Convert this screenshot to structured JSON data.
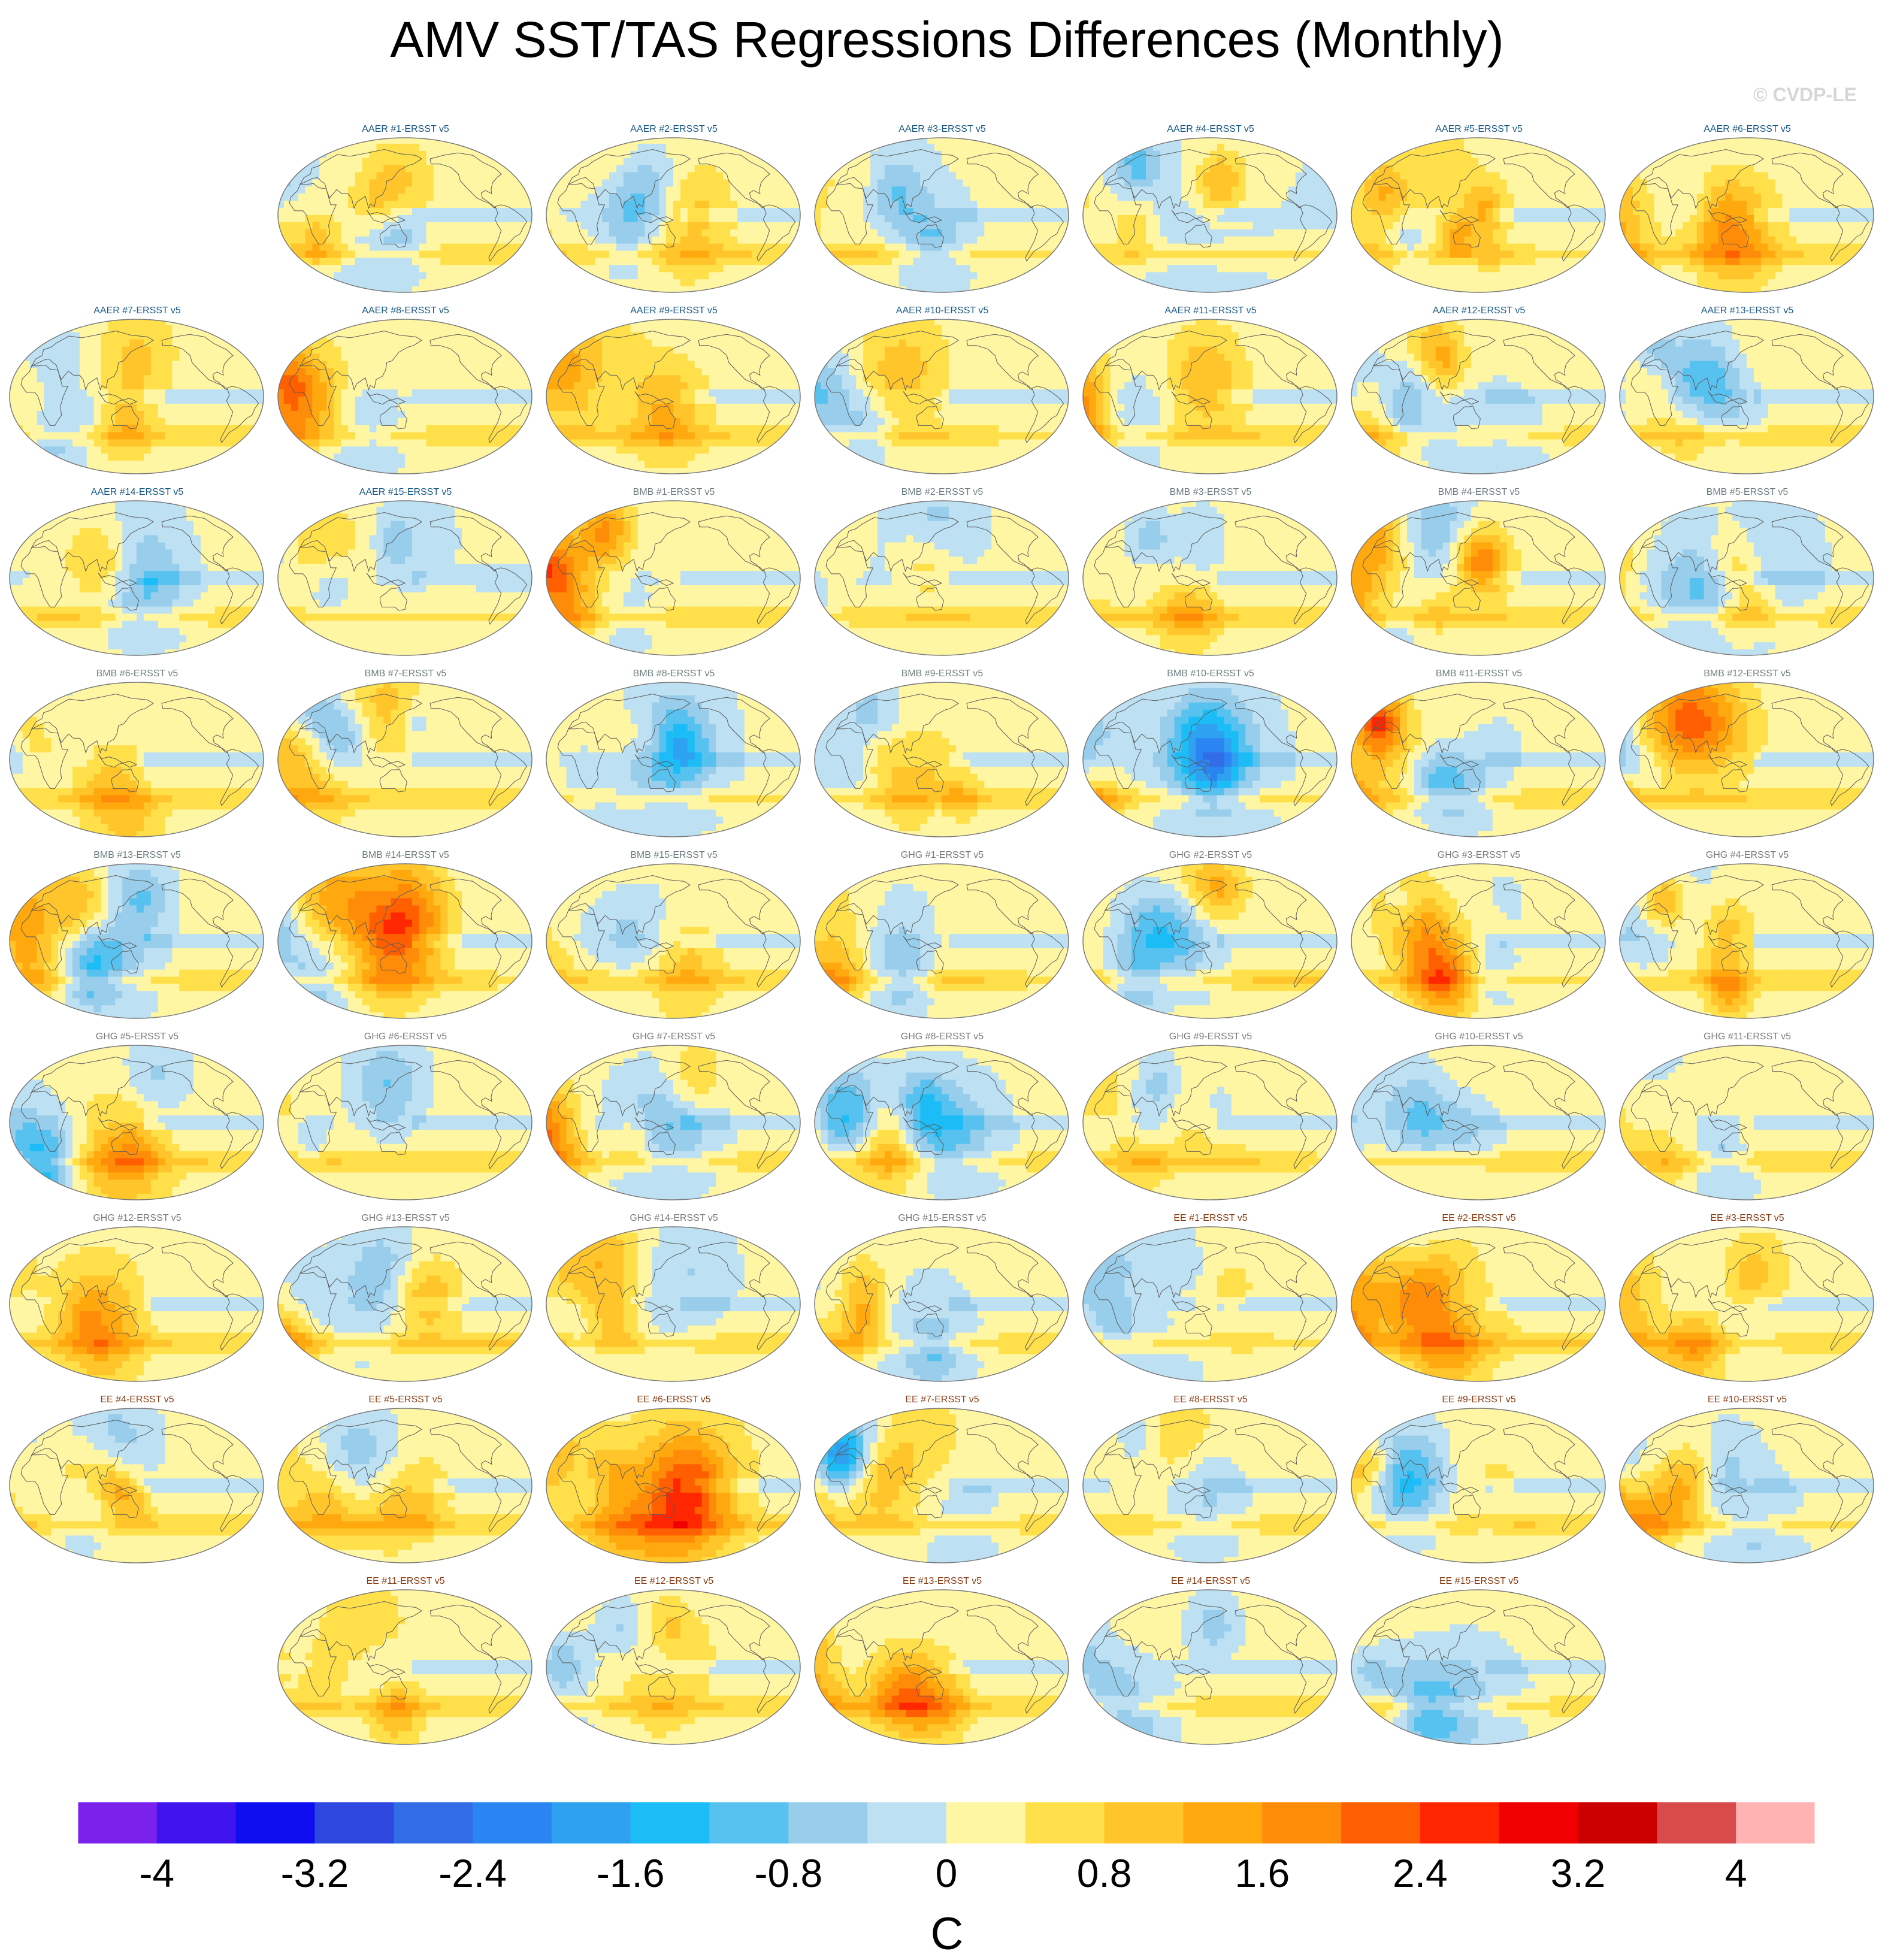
{
  "title": "AMV SST/TAS Regressions Differences (Monthly)",
  "copyright": "© CVDP-LE",
  "chart_data": {
    "type": "heatmap",
    "projection": "robinson",
    "panel_groups": [
      {
        "prefix": "AAER",
        "title_color": "#1a5a86"
      },
      {
        "prefix": "BMB",
        "title_color": "#6f7f80"
      },
      {
        "prefix": "GHG",
        "title_color": "#7d7d7d"
      },
      {
        "prefix": "EE",
        "title_color": "#8a3e14"
      }
    ],
    "panels": [
      {
        "title": "AAER #1-ERSST v5",
        "group": 0,
        "row": 0,
        "col": 1,
        "bias": 0.1,
        "na": -1.6,
        "seed": 11
      },
      {
        "title": "AAER #2-ERSST v5",
        "group": 0,
        "row": 0,
        "col": 2,
        "bias": 0.15,
        "na": -0.6,
        "seed": 12
      },
      {
        "title": "AAER #3-ERSST v5",
        "group": 0,
        "row": 0,
        "col": 3,
        "bias": 0.05,
        "na": -3.6,
        "seed": 13
      },
      {
        "title": "AAER #4-ERSST v5",
        "group": 0,
        "row": 0,
        "col": 4,
        "bias": 0.0,
        "na": -3.8,
        "seed": 14
      },
      {
        "title": "AAER #5-ERSST v5",
        "group": 0,
        "row": 0,
        "col": 5,
        "bias": 0.05,
        "na": -3.8,
        "seed": 15
      },
      {
        "title": "AAER #6-ERSST v5",
        "group": 0,
        "row": 0,
        "col": 6,
        "bias": 0.1,
        "na": -2.6,
        "seed": 16
      },
      {
        "title": "AAER #7-ERSST v5",
        "group": 0,
        "row": 1,
        "col": 0,
        "bias": 0.1,
        "na": -4.0,
        "seed": 17
      },
      {
        "title": "AAER #8-ERSST v5",
        "group": 0,
        "row": 1,
        "col": 1,
        "bias": 0.1,
        "na": -0.8,
        "seed": 18
      },
      {
        "title": "AAER #9-ERSST v5",
        "group": 0,
        "row": 1,
        "col": 2,
        "bias": 0.1,
        "na": -1.4,
        "seed": 19
      },
      {
        "title": "AAER #10-ERSST v5",
        "group": 0,
        "row": 1,
        "col": 3,
        "bias": 0.05,
        "na": -2.0,
        "seed": 20
      },
      {
        "title": "AAER #11-ERSST v5",
        "group": 0,
        "row": 1,
        "col": 4,
        "bias": 0.1,
        "na": -1.2,
        "seed": 21
      },
      {
        "title": "AAER #12-ERSST v5",
        "group": 0,
        "row": 1,
        "col": 5,
        "bias": 0.15,
        "na": -2.6,
        "seed": 22
      },
      {
        "title": "AAER #13-ERSST v5",
        "group": 0,
        "row": 1,
        "col": 6,
        "bias": 0.1,
        "na": -3.8,
        "seed": 23
      },
      {
        "title": "AAER #14-ERSST v5",
        "group": 0,
        "row": 2,
        "col": 0,
        "bias": 0.1,
        "na": -3.8,
        "seed": 24
      },
      {
        "title": "AAER #15-ERSST v5",
        "group": 0,
        "row": 2,
        "col": 1,
        "bias": 0.0,
        "na": -3.4,
        "seed": 25
      },
      {
        "title": "BMB #1-ERSST v5",
        "group": 1,
        "row": 2,
        "col": 2,
        "bias": 0.2,
        "na": -0.6,
        "seed": 26
      },
      {
        "title": "BMB #2-ERSST v5",
        "group": 1,
        "row": 2,
        "col": 3,
        "bias": 0.1,
        "na": -2.6,
        "seed": 27
      },
      {
        "title": "BMB #3-ERSST v5",
        "group": 1,
        "row": 2,
        "col": 4,
        "bias": 0.1,
        "na": -0.8,
        "seed": 28
      },
      {
        "title": "BMB #4-ERSST v5",
        "group": 1,
        "row": 2,
        "col": 5,
        "bias": 0.15,
        "na": -0.8,
        "seed": 29
      },
      {
        "title": "BMB #5-ERSST v5",
        "group": 1,
        "row": 2,
        "col": 6,
        "bias": 0.1,
        "na": -3.6,
        "seed": 30
      },
      {
        "title": "BMB #6-ERSST v5",
        "group": 1,
        "row": 3,
        "col": 0,
        "bias": 0.1,
        "na": -0.8,
        "seed": 31
      },
      {
        "title": "BMB #7-ERSST v5",
        "group": 1,
        "row": 3,
        "col": 1,
        "bias": 0.1,
        "na": -1.0,
        "seed": 32
      },
      {
        "title": "BMB #8-ERSST v5",
        "group": 1,
        "row": 3,
        "col": 2,
        "bias": 0.05,
        "na": -3.8,
        "seed": 33
      },
      {
        "title": "BMB #9-ERSST v5",
        "group": 1,
        "row": 3,
        "col": 3,
        "bias": 0.1,
        "na": -0.8,
        "seed": 34
      },
      {
        "title": "BMB #10-ERSST v5",
        "group": 1,
        "row": 3,
        "col": 4,
        "bias": 0.05,
        "na": -3.4,
        "seed": 35
      },
      {
        "title": "BMB #11-ERSST v5",
        "group": 1,
        "row": 3,
        "col": 5,
        "bias": 0.1,
        "na": -3.8,
        "seed": 36
      },
      {
        "title": "BMB #12-ERSST v5",
        "group": 1,
        "row": 3,
        "col": 6,
        "bias": 0.1,
        "na": -3.8,
        "seed": 37
      },
      {
        "title": "BMB #13-ERSST v5",
        "group": 1,
        "row": 4,
        "col": 0,
        "bias": 0.15,
        "na": -0.8,
        "seed": 38
      },
      {
        "title": "BMB #14-ERSST v5",
        "group": 1,
        "row": 4,
        "col": 1,
        "bias": 0.05,
        "na": -3.4,
        "seed": 39
      },
      {
        "title": "BMB #15-ERSST v5",
        "group": 1,
        "row": 4,
        "col": 2,
        "bias": 0.1,
        "na": -0.8,
        "seed": 40
      },
      {
        "title": "GHG #1-ERSST v5",
        "group": 2,
        "row": 4,
        "col": 3,
        "bias": 0.05,
        "na": -3.8,
        "seed": 41
      },
      {
        "title": "GHG #2-ERSST v5",
        "group": 2,
        "row": 4,
        "col": 4,
        "bias": 0.25,
        "na": -0.6,
        "seed": 42
      },
      {
        "title": "GHG #3-ERSST v5",
        "group": 2,
        "row": 4,
        "col": 5,
        "bias": 0.05,
        "na": -3.4,
        "seed": 43
      },
      {
        "title": "GHG #4-ERSST v5",
        "group": 2,
        "row": 4,
        "col": 6,
        "bias": 0.1,
        "na": -3.8,
        "seed": 44
      },
      {
        "title": "GHG #5-ERSST v5",
        "group": 2,
        "row": 5,
        "col": 0,
        "bias": 0.15,
        "na": -2.4,
        "seed": 45
      },
      {
        "title": "GHG #6-ERSST v5",
        "group": 2,
        "row": 5,
        "col": 1,
        "bias": 0.1,
        "na": -4.0,
        "seed": 46
      },
      {
        "title": "GHG #7-ERSST v5",
        "group": 2,
        "row": 5,
        "col": 2,
        "bias": 0.15,
        "na": -3.6,
        "seed": 47
      },
      {
        "title": "GHG #8-ERSST v5",
        "group": 2,
        "row": 5,
        "col": 3,
        "bias": 0.1,
        "na": -3.4,
        "seed": 48
      },
      {
        "title": "GHG #9-ERSST v5",
        "group": 2,
        "row": 5,
        "col": 4,
        "bias": 0.05,
        "na": -2.6,
        "seed": 49
      },
      {
        "title": "GHG #10-ERSST v5",
        "group": 2,
        "row": 5,
        "col": 5,
        "bias": 0.1,
        "na": -3.4,
        "seed": 50
      },
      {
        "title": "GHG #11-ERSST v5",
        "group": 2,
        "row": 5,
        "col": 6,
        "bias": 0.1,
        "na": -4.0,
        "seed": 51
      },
      {
        "title": "GHG #12-ERSST v5",
        "group": 2,
        "row": 6,
        "col": 0,
        "bias": 0.2,
        "na": -3.8,
        "seed": 52
      },
      {
        "title": "GHG #13-ERSST v5",
        "group": 2,
        "row": 6,
        "col": 1,
        "bias": 0.2,
        "na": -1.0,
        "seed": 53
      },
      {
        "title": "GHG #14-ERSST v5",
        "group": 2,
        "row": 6,
        "col": 2,
        "bias": 0.1,
        "na": -3.8,
        "seed": 54
      },
      {
        "title": "GHG #15-ERSST v5",
        "group": 2,
        "row": 6,
        "col": 3,
        "bias": 0.1,
        "na": -1.0,
        "seed": 55
      },
      {
        "title": "EE #1-ERSST v5",
        "group": 3,
        "row": 6,
        "col": 4,
        "bias": 0.05,
        "na": -2.0,
        "seed": 56
      },
      {
        "title": "EE #2-ERSST v5",
        "group": 3,
        "row": 6,
        "col": 5,
        "bias": 0.2,
        "na": -0.4,
        "seed": 57
      },
      {
        "title": "EE #3-ERSST v5",
        "group": 3,
        "row": 6,
        "col": 6,
        "bias": 0.15,
        "na": -1.4,
        "seed": 58
      },
      {
        "title": "EE #4-ERSST v5",
        "group": 3,
        "row": 7,
        "col": 0,
        "bias": 0.15,
        "na": -0.6,
        "seed": 59
      },
      {
        "title": "EE #5-ERSST v5",
        "group": 3,
        "row": 7,
        "col": 1,
        "bias": 0.1,
        "na": -3.8,
        "seed": 60
      },
      {
        "title": "EE #6-ERSST v5",
        "group": 3,
        "row": 7,
        "col": 2,
        "bias": 0.25,
        "na": -0.8,
        "seed": 61
      },
      {
        "title": "EE #7-ERSST v5",
        "group": 3,
        "row": 7,
        "col": 3,
        "bias": 0.1,
        "na": -0.6,
        "seed": 62
      },
      {
        "title": "EE #8-ERSST v5",
        "group": 3,
        "row": 7,
        "col": 4,
        "bias": 0.15,
        "na": -0.8,
        "seed": 63
      },
      {
        "title": "EE #9-ERSST v5",
        "group": 3,
        "row": 7,
        "col": 5,
        "bias": 0.1,
        "na": -3.8,
        "seed": 64
      },
      {
        "title": "EE #10-ERSST v5",
        "group": 3,
        "row": 7,
        "col": 6,
        "bias": 0.05,
        "na": -1.6,
        "seed": 65
      },
      {
        "title": "EE #11-ERSST v5",
        "group": 3,
        "row": 8,
        "col": 1,
        "bias": 0.15,
        "na": -2.4,
        "seed": 66
      },
      {
        "title": "EE #12-ERSST v5",
        "group": 3,
        "row": 8,
        "col": 2,
        "bias": 0.15,
        "na": -0.6,
        "seed": 67
      },
      {
        "title": "EE #13-ERSST v5",
        "group": 3,
        "row": 8,
        "col": 3,
        "bias": 0.1,
        "na": -0.8,
        "seed": 68
      },
      {
        "title": "EE #14-ERSST v5",
        "group": 3,
        "row": 8,
        "col": 4,
        "bias": 0.1,
        "na": -3.8,
        "seed": 69
      },
      {
        "title": "EE #15-ERSST v5",
        "group": 3,
        "row": 8,
        "col": 5,
        "bias": 0.1,
        "na": -0.8,
        "seed": 70
      }
    ],
    "colorbar": {
      "min": -4.4,
      "max": 4.4,
      "step": 0.4,
      "colors": [
        "#7b21ec",
        "#3f14ef",
        "#0e0ef0",
        "#2e47df",
        "#336de6",
        "#2a84f2",
        "#2ea2f1",
        "#1cbdf6",
        "#57c2ef",
        "#98cdeb",
        "#bde0f3",
        "#fff6a4",
        "#ffe04a",
        "#ffc52b",
        "#ffa90f",
        "#ff8c08",
        "#ff5f00",
        "#ff2600",
        "#f00000",
        "#cc0000",
        "#d94a4a",
        "#ffb3b3"
      ],
      "tick_values": [
        -4,
        -3.2,
        -2.4,
        -1.6,
        -0.8,
        0,
        0.8,
        1.6,
        2.4,
        3.2,
        4
      ],
      "tick_labels": [
        "-4",
        "-3.2",
        "-2.4",
        "-1.6",
        "-0.8",
        "0",
        "0.8",
        "1.6",
        "2.4",
        "3.2",
        "4"
      ],
      "unit": "C"
    }
  }
}
